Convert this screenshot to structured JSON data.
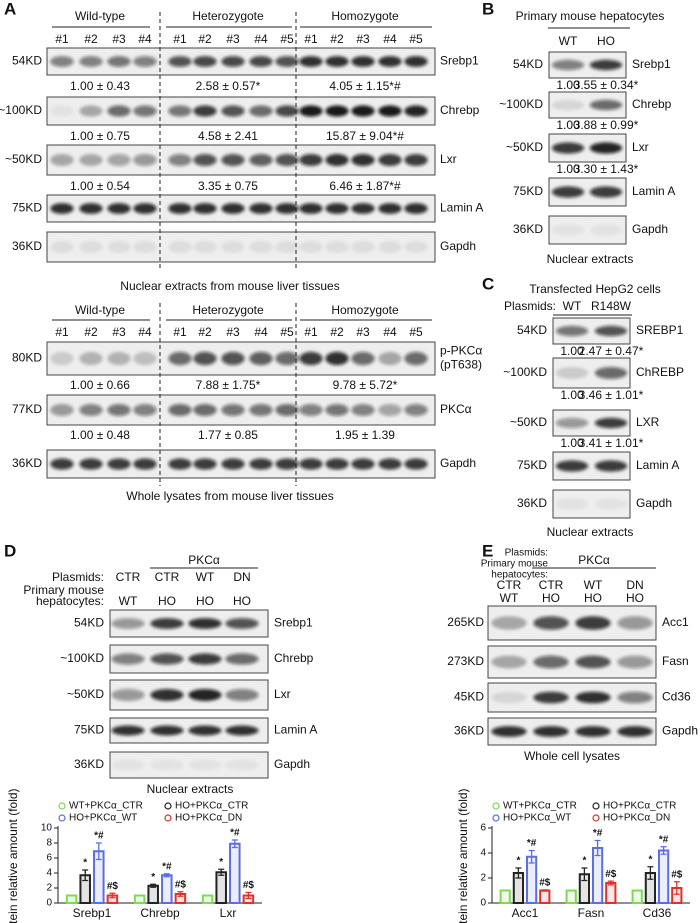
{
  "panel_a": {
    "label": "A",
    "top": {
      "groups": [
        "Wild-type",
        "Heterozygote",
        "Homozygote"
      ],
      "lanes": [
        "#1",
        "#2",
        "#3",
        "#4",
        "#1",
        "#2",
        "#3",
        "#4",
        "#5",
        "#1",
        "#2",
        "#3",
        "#4",
        "#5"
      ],
      "blots": [
        {
          "size": "54KD",
          "protein": "Srebp1",
          "quant": [
            "1.00 ± 0.43",
            "2.58 ± 0.57*",
            "4.05 ± 1.15*#"
          ]
        },
        {
          "size": "~100KD",
          "protein": "Chrebp",
          "quant": [
            "1.00 ± 0.75",
            "4.58 ± 2.41",
            "15.87 ± 9.04*#"
          ]
        },
        {
          "size": "~50KD",
          "protein": "Lxr",
          "quant": [
            "1.00 ± 0.54",
            "3.35 ± 0.75",
            "6.46 ± 1.87*#"
          ]
        },
        {
          "size": "75KD",
          "protein": "Lamin A"
        },
        {
          "size": "36KD",
          "protein": "Gapdh"
        }
      ],
      "caption": "Nuclear extracts from mouse liver tissues"
    },
    "bottom": {
      "groups": [
        "Wild-type",
        "Heterozygote",
        "Homozygote"
      ],
      "lanes": [
        "#1",
        "#2",
        "#3",
        "#4",
        "#1",
        "#2",
        "#3",
        "#4",
        "#5",
        "#1",
        "#2",
        "#3",
        "#4",
        "#5"
      ],
      "blots": [
        {
          "size": "80KD",
          "protein": "p-PKCα",
          "protein_note": "(pT638)",
          "quant": [
            "1.00 ± 0.66",
            "7.88 ± 1.75*",
            "9.78 ± 5.72*"
          ]
        },
        {
          "size": "77KD",
          "protein": "PKCα",
          "quant": [
            "1.00 ± 0.48",
            "1.77 ± 0.85",
            "1.95 ± 1.39"
          ]
        },
        {
          "size": "36KD",
          "protein": "Gapdh"
        }
      ],
      "caption": "Whole lysates from mouse liver tissues"
    }
  },
  "panel_b": {
    "label": "B",
    "title": "Primary mouse hepatocytes",
    "lanes": [
      "WT",
      "HO"
    ],
    "blots": [
      {
        "size": "54KD",
        "protein": "Srebp1",
        "quant": [
          "1.00",
          "3.55 ± 0.34*"
        ]
      },
      {
        "size": "~100KD",
        "protein": "Chrebp",
        "quant": [
          "1.00",
          "3.88 ± 0.99*"
        ]
      },
      {
        "size": "~50KD",
        "protein": "Lxr",
        "quant": [
          "1.00",
          "3.30 ± 1.43*"
        ]
      },
      {
        "size": "75KD",
        "protein": "Lamin A"
      },
      {
        "size": "36KD",
        "protein": "Gapdh"
      }
    ],
    "caption": "Nuclear extracts"
  },
  "panel_c": {
    "label": "C",
    "title": "Transfected HepG2 cells",
    "plasmids_label": "Plasmids:",
    "lanes": [
      "WT",
      "R148W"
    ],
    "blots": [
      {
        "size": "54KD",
        "protein": "SREBP1",
        "quant": [
          "1.00",
          "2.47 ± 0.47*"
        ]
      },
      {
        "size": "~100KD",
        "protein": "ChREBP",
        "quant": [
          "1.00",
          "3.46 ± 1.01*"
        ]
      },
      {
        "size": "~50KD",
        "protein": "LXR",
        "quant": [
          "1.00",
          "3.41 ± 1.01*"
        ]
      },
      {
        "size": "75KD",
        "protein": "Lamin A"
      },
      {
        "size": "36KD",
        "protein": "Gapdh"
      }
    ],
    "caption": "Nuclear extracts"
  },
  "panel_d": {
    "label": "D",
    "plasmids_label": "Plasmids:",
    "cells_label": [
      "Primary mouse",
      "hepatocytes:"
    ],
    "group_label": "PKCα",
    "plasmids": [
      "CTR",
      "CTR",
      "WT",
      "DN"
    ],
    "cells": [
      "WT",
      "HO",
      "HO",
      "HO"
    ],
    "blots": [
      {
        "size": "54KD",
        "protein": "Srebp1"
      },
      {
        "size": "~100KD",
        "protein": "Chrebp"
      },
      {
        "size": "~50KD",
        "protein": "Lxr"
      },
      {
        "size": "75KD",
        "protein": "Lamin A"
      },
      {
        "size": "36KD",
        "protein": "Gapdh"
      }
    ],
    "caption": "Nuclear extracts"
  },
  "panel_e": {
    "label": "E",
    "plasmids_label": "Plasmids:",
    "cells_label": [
      "Primary mouse",
      "hepatocytes:"
    ],
    "group_label": "PKCα",
    "plasmids": [
      "CTR",
      "CTR",
      "WT",
      "DN"
    ],
    "cells": [
      "WT",
      "HO",
      "HO",
      "HO"
    ],
    "blots": [
      {
        "size": "265KD",
        "protein": "Acc1"
      },
      {
        "size": "273KD",
        "protein": "Fasn"
      },
      {
        "size": "45KD",
        "protein": "Cd36"
      },
      {
        "size": "36KD",
        "protein": "Gapdh"
      }
    ],
    "caption": "Whole cell lysates"
  },
  "chart_data": [
    {
      "type": "bar",
      "ylabel": "Protein relative amount (fold)",
      "categories": [
        "Srebp1",
        "Chrebp",
        "Lxr"
      ],
      "ylim": [
        0,
        10
      ],
      "yticks": [
        0,
        2,
        4,
        6,
        8,
        10
      ],
      "series": [
        {
          "name": "WT+PKCα_CTR",
          "color": "#7ed957",
          "values": [
            1,
            1,
            1
          ],
          "errors": [
            0.05,
            0.05,
            0.05
          ]
        },
        {
          "name": "HO+PKCα_CTR",
          "color": "#222222",
          "values": [
            3.7,
            2.3,
            4.1
          ],
          "errors": [
            0.7,
            0.2,
            0.4
          ],
          "annotations": [
            "*",
            "*",
            "*"
          ]
        },
        {
          "name": "HO+PKCα_WT",
          "color": "#5b6ee1",
          "values": [
            6.9,
            3.7,
            7.9
          ],
          "errors": [
            1.1,
            0.2,
            0.5
          ],
          "annotations": [
            "*#",
            "*#",
            "*#"
          ]
        },
        {
          "name": "HO+PKCα_DN",
          "color": "#e0302a",
          "values": [
            1.0,
            1.2,
            1.0
          ],
          "errors": [
            0.3,
            0.3,
            0.4
          ],
          "annotations": [
            "#$",
            "#$",
            "#$"
          ]
        }
      ]
    },
    {
      "type": "bar",
      "ylabel": "Protein relative amount (fold)",
      "categories": [
        "Acc1",
        "Fasn",
        "Cd36"
      ],
      "ylim": [
        0,
        6
      ],
      "yticks": [
        0,
        2,
        4,
        6
      ],
      "series": [
        {
          "name": "WT+PKCα_CTR",
          "color": "#7ed957",
          "values": [
            1,
            1,
            1
          ],
          "errors": [
            0.03,
            0.03,
            0.03
          ]
        },
        {
          "name": "HO+PKCα_CTR",
          "color": "#222222",
          "values": [
            2.4,
            2.3,
            2.4
          ],
          "errors": [
            0.4,
            0.5,
            0.5
          ],
          "annotations": [
            "*",
            "*",
            "*"
          ]
        },
        {
          "name": "HO+PKCα_WT",
          "color": "#5b6ee1",
          "values": [
            3.7,
            4.4,
            4.2
          ],
          "errors": [
            0.5,
            0.6,
            0.3
          ],
          "annotations": [
            "*#",
            "*#",
            "*#"
          ]
        },
        {
          "name": "HO+PKCα_DN",
          "color": "#e0302a",
          "values": [
            1.0,
            1.6,
            1.2
          ],
          "errors": [
            0.05,
            0.15,
            0.5
          ],
          "annotations": [
            "#$",
            "#$",
            "#$"
          ]
        }
      ]
    }
  ]
}
